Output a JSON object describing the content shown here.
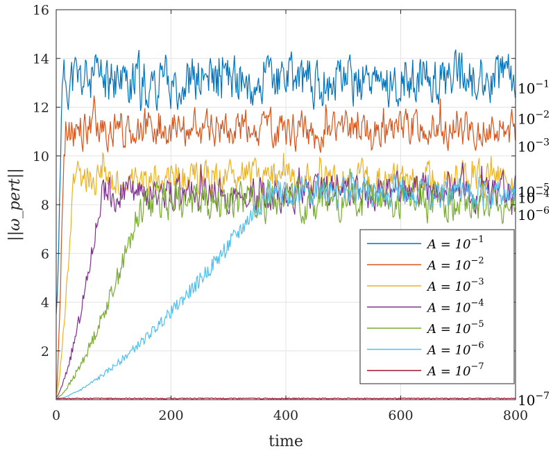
{
  "chart_data": {
    "type": "line",
    "xlabel": "time",
    "ylabel": "||ω_pert||",
    "xlim": [
      0,
      800
    ],
    "ylim": [
      0,
      16
    ],
    "xticks": [
      0,
      200,
      400,
      600,
      800
    ],
    "yticks": [
      2,
      4,
      6,
      8,
      10,
      12,
      14,
      16
    ],
    "grid": true,
    "legend_position": "bottom-right",
    "series": [
      {
        "name": "A = 10^-1",
        "legend_prefix": "A = 10",
        "legend_exp": "−1",
        "color": "#0072BD",
        "onset": 10,
        "base": 13.1,
        "amp": 1.0,
        "start": 3.5,
        "seed": 11,
        "right_label": "10",
        "right_exp": "−1",
        "right_value": 12.8
      },
      {
        "name": "A = 10^-2",
        "legend_prefix": "A = 10",
        "legend_exp": "−2",
        "color": "#D95319",
        "onset": 14,
        "base": 11.1,
        "amp": 0.75,
        "start": 0.2,
        "seed": 22,
        "right_label": "10",
        "right_exp": "−2",
        "right_value": 11.55
      },
      {
        "name": "A = 10^-3",
        "legend_prefix": "A = 10",
        "legend_exp": "−3",
        "color": "#EDB120",
        "onset": 30,
        "base": 9.1,
        "amp": 0.65,
        "start": 0.1,
        "seed": 33,
        "right_label": "10",
        "right_exp": "−3",
        "right_value": 10.4
      },
      {
        "name": "A = 10^-4",
        "legend_prefix": "A = 10",
        "legend_exp": "−4",
        "color": "#7E2F8E",
        "onset": 80,
        "base": 8.5,
        "amp": 0.7,
        "start": 0.1,
        "seed": 44,
        "right_label": "10",
        "right_exp": "−4",
        "right_value": 8.3
      },
      {
        "name": "A = 10^-5",
        "legend_prefix": "A = 10",
        "legend_exp": "−5",
        "color": "#77AC30",
        "onset": 150,
        "base": 8.1,
        "amp": 0.75,
        "start": 0.05,
        "seed": 55,
        "right_label": "10",
        "right_exp": "−5",
        "right_value": 8.55
      },
      {
        "name": "A = 10^-6",
        "legend_prefix": "A = 10",
        "legend_exp": "−6",
        "color": "#4DBEEE",
        "onset": 370,
        "base": 8.5,
        "amp": 0.6,
        "start": 0.0,
        "seed": 66,
        "right_label": "10",
        "right_exp": "−6",
        "right_value": 7.6
      },
      {
        "name": "A = 10^-7",
        "legend_prefix": "A = 10",
        "legend_exp": "−7",
        "color": "#A2142F",
        "onset": 9999,
        "base": 0.05,
        "amp": 0.02,
        "start": 0.0,
        "seed": 77,
        "right_label": "10",
        "right_exp": "−7",
        "right_value": 0.0
      }
    ]
  }
}
